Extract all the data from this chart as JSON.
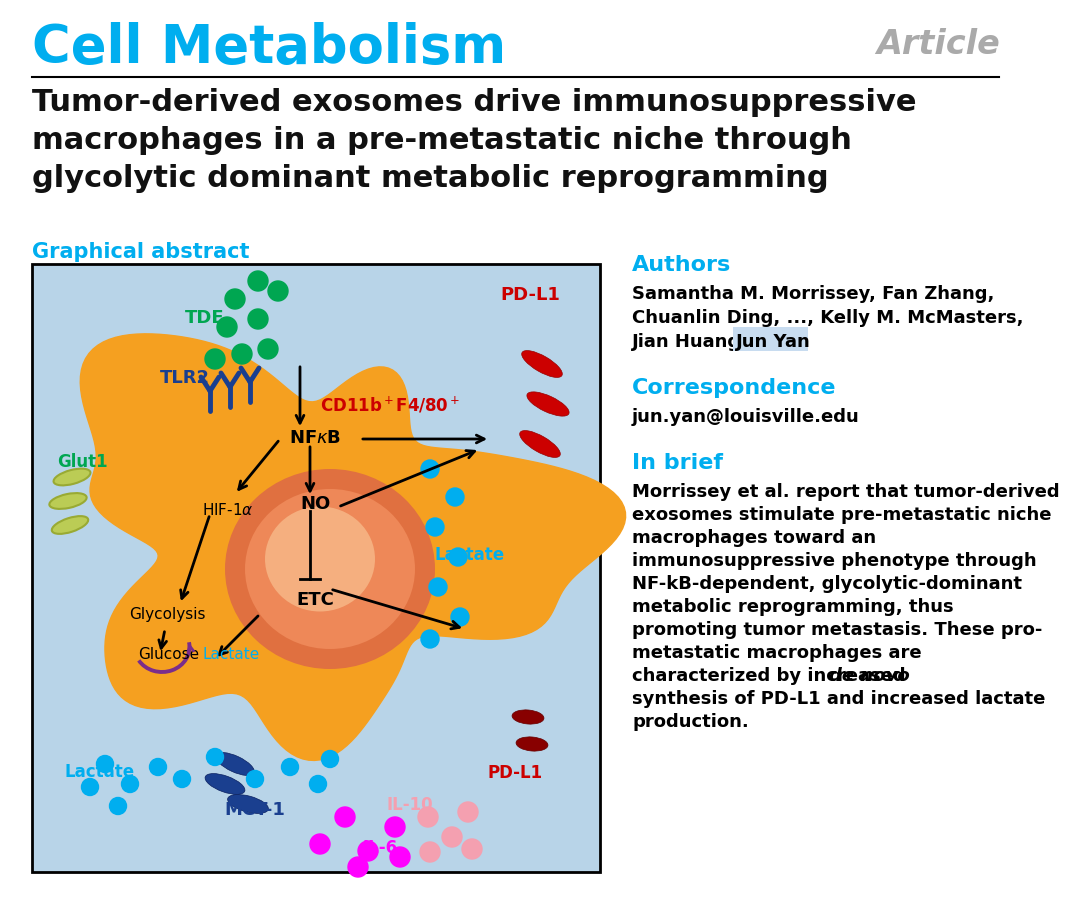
{
  "title_journal": "Cell Metabolism",
  "title_article_type": "Article",
  "title_main_line1": "Tumor-derived exosomes drive immunosuppressive",
  "title_main_line2": "macrophages in a pre-metastatic niche through",
  "title_main_line3": "glycolytic dominant metabolic reprogramming",
  "section_graphical": "Graphical abstract",
  "section_authors": "Authors",
  "authors_line1": "Samantha M. Morrissey, Fan Zhang,",
  "authors_line2": "Chuanlin Ding, ..., Kelly M. McMasters,",
  "authors_line3_pre": "Jian Huang, ",
  "authors_line3_highlight": "Jun Yan",
  "section_correspondence": "Correspondence",
  "correspondence_email": "jun.yan@louisville.edu",
  "section_inbrief": "In brief",
  "inbrief_line1": "Morrissey et al. report that tumor-derived",
  "inbrief_line2": "exosomes stimulate pre-metastatic niche",
  "inbrief_line3": "macrophages toward an",
  "inbrief_line4": "immunosuppressive phenotype through",
  "inbrief_line5": "NF-kB-dependent, glycolytic-dominant",
  "inbrief_line6": "metabolic reprogramming, thus",
  "inbrief_line7": "promoting tumor metastasis. These pro-",
  "inbrief_line8": "metastatic macrophages are",
  "inbrief_line9a": "characterized by increased ",
  "inbrief_line9b": "de novo",
  "inbrief_line10": "synthesis of PD-L1 and increased lactate",
  "inbrief_line11": "production.",
  "color_cyan": "#00AEEF",
  "color_red": "#CC0000",
  "color_green": "#00A651",
  "color_dark_blue": "#1A3F8F",
  "color_navy": "#1A3F8F",
  "color_purple": "#7B2D8B",
  "color_magenta": "#FF00FF",
  "color_light_pink": "#F4A0B0",
  "color_orange_cell": "#F5A020",
  "color_nucleus_outer": "#E87040",
  "color_nucleus_inner": "#F0A080",
  "color_light_blue_bg": "#B8D4E8",
  "color_gray_article": "#AAAAAA",
  "color_black": "#111111",
  "color_white": "#FFFFFF",
  "color_highlight_junyam": "#C8DCF0",
  "color_glut1": "#BBCC55"
}
